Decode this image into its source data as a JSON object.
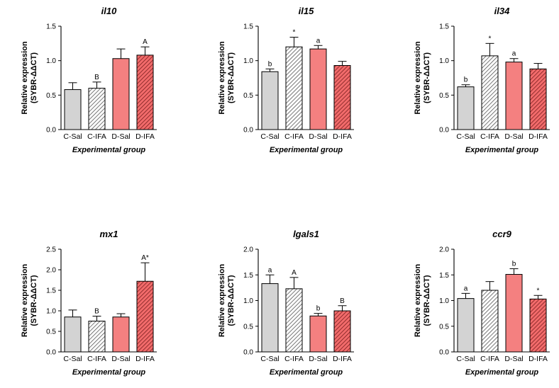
{
  "colors": {
    "control": "#d3d3d3",
    "disease": "#f48080",
    "hatch_control_bg": "#ffffff",
    "hatch_control_line": "#555555",
    "hatch_disease_bg": "#f26b6b",
    "hatch_disease_line": "#7a1f1f",
    "axis": "#000000"
  },
  "chart_data": [
    {
      "type": "bar",
      "title": "il10",
      "ylabel": "Relative expression (SYBR-ΔΔCT)",
      "ylabel_lines": [
        "Relative expression",
        "(SYBR-ΔΔCT)"
      ],
      "xlabel": "Experimental group",
      "categories": [
        "C-Sal",
        "C-IFA",
        "D-Sal",
        "D-IFA"
      ],
      "values": [
        0.58,
        0.6,
        1.03,
        1.08
      ],
      "errors": [
        0.1,
        0.09,
        0.14,
        0.12
      ],
      "annotations": [
        "",
        "B",
        "",
        "A"
      ],
      "ylim": [
        0,
        1.5
      ],
      "yticks": [
        "0.0",
        "0.5",
        "1.0",
        "1.5"
      ]
    },
    {
      "type": "bar",
      "title": "il15",
      "ylabel": "Relative expression (SYBR-ΔΔCT)",
      "ylabel_lines": [
        "Relative expression",
        "(SYBR-ΔΔCT)"
      ],
      "xlabel": "Experimental group",
      "categories": [
        "C-Sal",
        "C-IFA",
        "D-Sal",
        "D-IFA"
      ],
      "values": [
        0.84,
        1.2,
        1.17,
        0.93
      ],
      "errors": [
        0.04,
        0.14,
        0.05,
        0.06
      ],
      "annotations": [
        "b",
        "*",
        "a",
        ""
      ],
      "ylim": [
        0,
        1.5
      ],
      "yticks": [
        "0.0",
        "0.5",
        "1.0",
        "1.5"
      ]
    },
    {
      "type": "bar",
      "title": "il34",
      "ylabel": "Relative expression (SYBR-ΔΔCT)",
      "ylabel_lines": [
        "Relative expression",
        "(SYBR-ΔΔCT)"
      ],
      "xlabel": "Experimental group",
      "categories": [
        "C-Sal",
        "C-IFA",
        "D-Sal",
        "D-IFA"
      ],
      "values": [
        0.62,
        1.07,
        0.98,
        0.88
      ],
      "errors": [
        0.03,
        0.18,
        0.05,
        0.08
      ],
      "annotations": [
        "b",
        "*",
        "a",
        ""
      ],
      "ylim": [
        0,
        1.5
      ],
      "yticks": [
        "0.0",
        "0.5",
        "1.0",
        "1.5"
      ]
    },
    {
      "type": "bar",
      "title": "mx1",
      "ylabel": "Relative expression (SYBR-ΔΔCT)",
      "ylabel_lines": [
        "Relative expression",
        "(SYBR-ΔΔCT)"
      ],
      "xlabel": "Experimental group",
      "categories": [
        "C-Sal",
        "C-IFA",
        "D-Sal",
        "D-IFA"
      ],
      "values": [
        0.85,
        0.75,
        0.85,
        1.72
      ],
      "errors": [
        0.17,
        0.12,
        0.08,
        0.45
      ],
      "annotations": [
        "",
        "B",
        "",
        "A*"
      ],
      "ylim": [
        0,
        2.5
      ],
      "yticks": [
        "0.0",
        "0.5",
        "1.0",
        "1.5",
        "2.0",
        "2.5"
      ]
    },
    {
      "type": "bar",
      "title": "lgals1",
      "ylabel": "Relative expression (SYBR-ΔΔCT)",
      "ylabel_lines": [
        "Relative expression",
        "(SYBR-ΔΔCT)"
      ],
      "xlabel": "Experimental group",
      "categories": [
        "C-Sal",
        "C-IFA",
        "D-Sal",
        "D-IFA"
      ],
      "values": [
        1.33,
        1.23,
        0.7,
        0.8
      ],
      "errors": [
        0.17,
        0.22,
        0.05,
        0.1
      ],
      "annotations": [
        "a",
        "A",
        "b",
        "B"
      ],
      "ylim": [
        0,
        2.0
      ],
      "yticks": [
        "0.0",
        "0.5",
        "1.0",
        "1.5",
        "2.0"
      ]
    },
    {
      "type": "bar",
      "title": "ccr9",
      "ylabel": "Relative expression (SYBR-ΔΔCT)",
      "ylabel_lines": [
        "Relative expression",
        "(SYBR-ΔΔCT)"
      ],
      "xlabel": "Experimental group",
      "categories": [
        "C-Sal",
        "C-IFA",
        "D-Sal",
        "D-IFA"
      ],
      "values": [
        1.04,
        1.2,
        1.51,
        1.03
      ],
      "errors": [
        0.1,
        0.17,
        0.11,
        0.07
      ],
      "annotations": [
        "a",
        "",
        "b",
        "*"
      ],
      "ylim": [
        0,
        2.0
      ],
      "yticks": [
        "0.0",
        "0.5",
        "1.0",
        "1.5",
        "2.0"
      ]
    }
  ]
}
